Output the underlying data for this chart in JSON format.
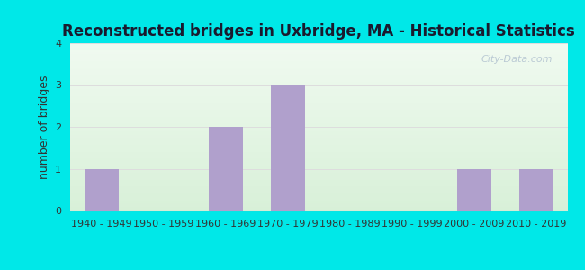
{
  "title": "Reconstructed bridges in Uxbridge, MA - Historical Statistics",
  "ylabel": "number of bridges",
  "categories": [
    "1940 - 1949",
    "1950 - 1959",
    "1960 - 1969",
    "1970 - 1979",
    "1980 - 1989",
    "1990 - 1999",
    "2000 - 2009",
    "2010 - 2019"
  ],
  "values": [
    1,
    0,
    2,
    3,
    0,
    0,
    1,
    1
  ],
  "bar_color": "#b0a0cc",
  "background_outer": "#00e8e8",
  "background_plot_top": "#f0faf0",
  "background_plot_bottom": "#d8f0d8",
  "ylim": [
    0,
    4
  ],
  "yticks": [
    0,
    1,
    2,
    3,
    4
  ],
  "title_fontsize": 12,
  "label_fontsize": 9,
  "tick_fontsize": 8,
  "watermark": "City-Data.com",
  "grid_color": "#dddddd",
  "title_color": "#1a1a2e"
}
